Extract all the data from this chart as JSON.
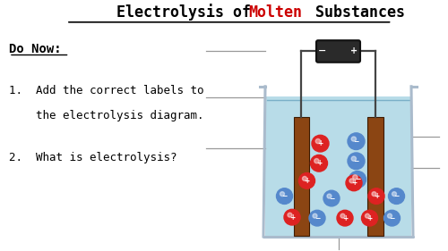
{
  "title_parts": [
    {
      "text": "Electrolysis of ",
      "color": "#000000"
    },
    {
      "text": "Molten",
      "color": "#cc0000"
    },
    {
      "text": " Substances",
      "color": "#000000"
    }
  ],
  "do_now_label": "Do Now:",
  "q1_line1": "1.  Add the correct labels to",
  "q1_line2": "    the electrolysis diagram.",
  "q2": "2.  What is electrolysis?",
  "bg_color": "#ffffff",
  "beaker_liquid_color": "#b8dce8",
  "electrode_color": "#8B4513",
  "battery_color": "#2a2a2a",
  "positive_ion_color": "#dd2222",
  "negative_ion_color": "#5588cc",
  "wire_color": "#444444",
  "label_line_color": "#999999",
  "beaker_color": "#aabbcc"
}
